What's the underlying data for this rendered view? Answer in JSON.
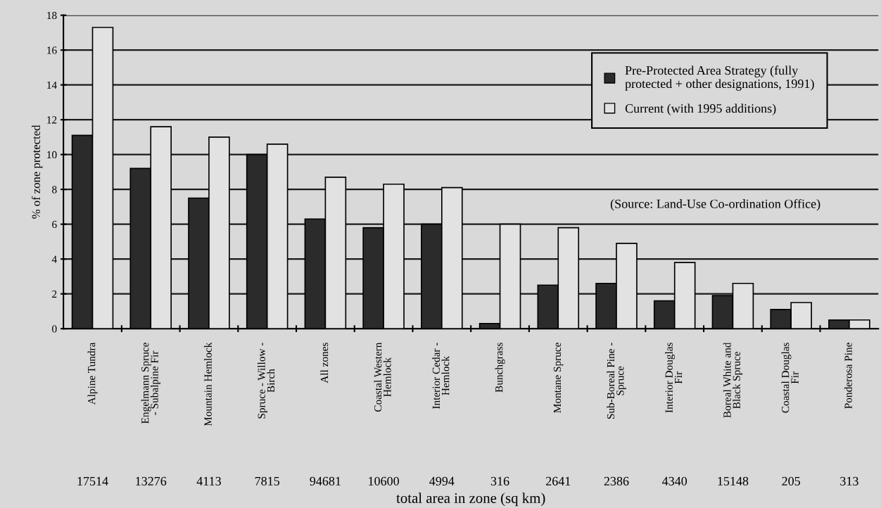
{
  "chart_data": {
    "type": "bar",
    "ylabel": "% of zone protected",
    "xlabel": "total area in zone (sq km)",
    "categories": [
      "Alpine Tundra",
      "Engelmann Spruce\n- Subalpine Fir",
      "Mountain Hemlock",
      "Spruce - Willow -\nBirch",
      "All zones",
      "Coastal Western\nHemlock",
      "Interior Cedar -\nHemlock",
      "Bunchgrass",
      "Montane Spruce",
      "Sub-Boreal Pine -\nSpruce",
      "Interior Douglas\nFir",
      "Boreal White and\nBlack Spruce",
      "Coastal Douglas\nFir",
      "Ponderosa Pine"
    ],
    "series": [
      {
        "name": "Pre-Protected Area Strategy (fully\nprotected + other designations, 1991)",
        "color": "#2b2b2b",
        "values": [
          11.1,
          9.2,
          7.5,
          10.0,
          6.3,
          5.8,
          6.0,
          0.3,
          2.5,
          2.6,
          1.6,
          1.9,
          1.1,
          0.5
        ]
      },
      {
        "name": "Current (with 1995 additions)",
        "color": "#e2e2e2",
        "values": [
          17.3,
          11.6,
          11.0,
          10.6,
          8.7,
          8.3,
          8.1,
          6.0,
          5.8,
          4.9,
          3.8,
          2.6,
          1.5,
          0.5
        ]
      }
    ],
    "annotations": [
      "17514",
      "13276",
      "4113",
      "7815",
      "94681",
      "10600",
      "4994",
      "316",
      "2641",
      "2386",
      "4340",
      "15148",
      "205",
      "313",
      "(Source: Land-Use Co-ordination Office)"
    ],
    "ylim": [
      0,
      18
    ],
    "yticks": [
      0,
      2,
      4,
      6,
      8,
      10,
      12,
      14,
      16,
      18
    ],
    "grid": "y",
    "legend": "top right"
  }
}
